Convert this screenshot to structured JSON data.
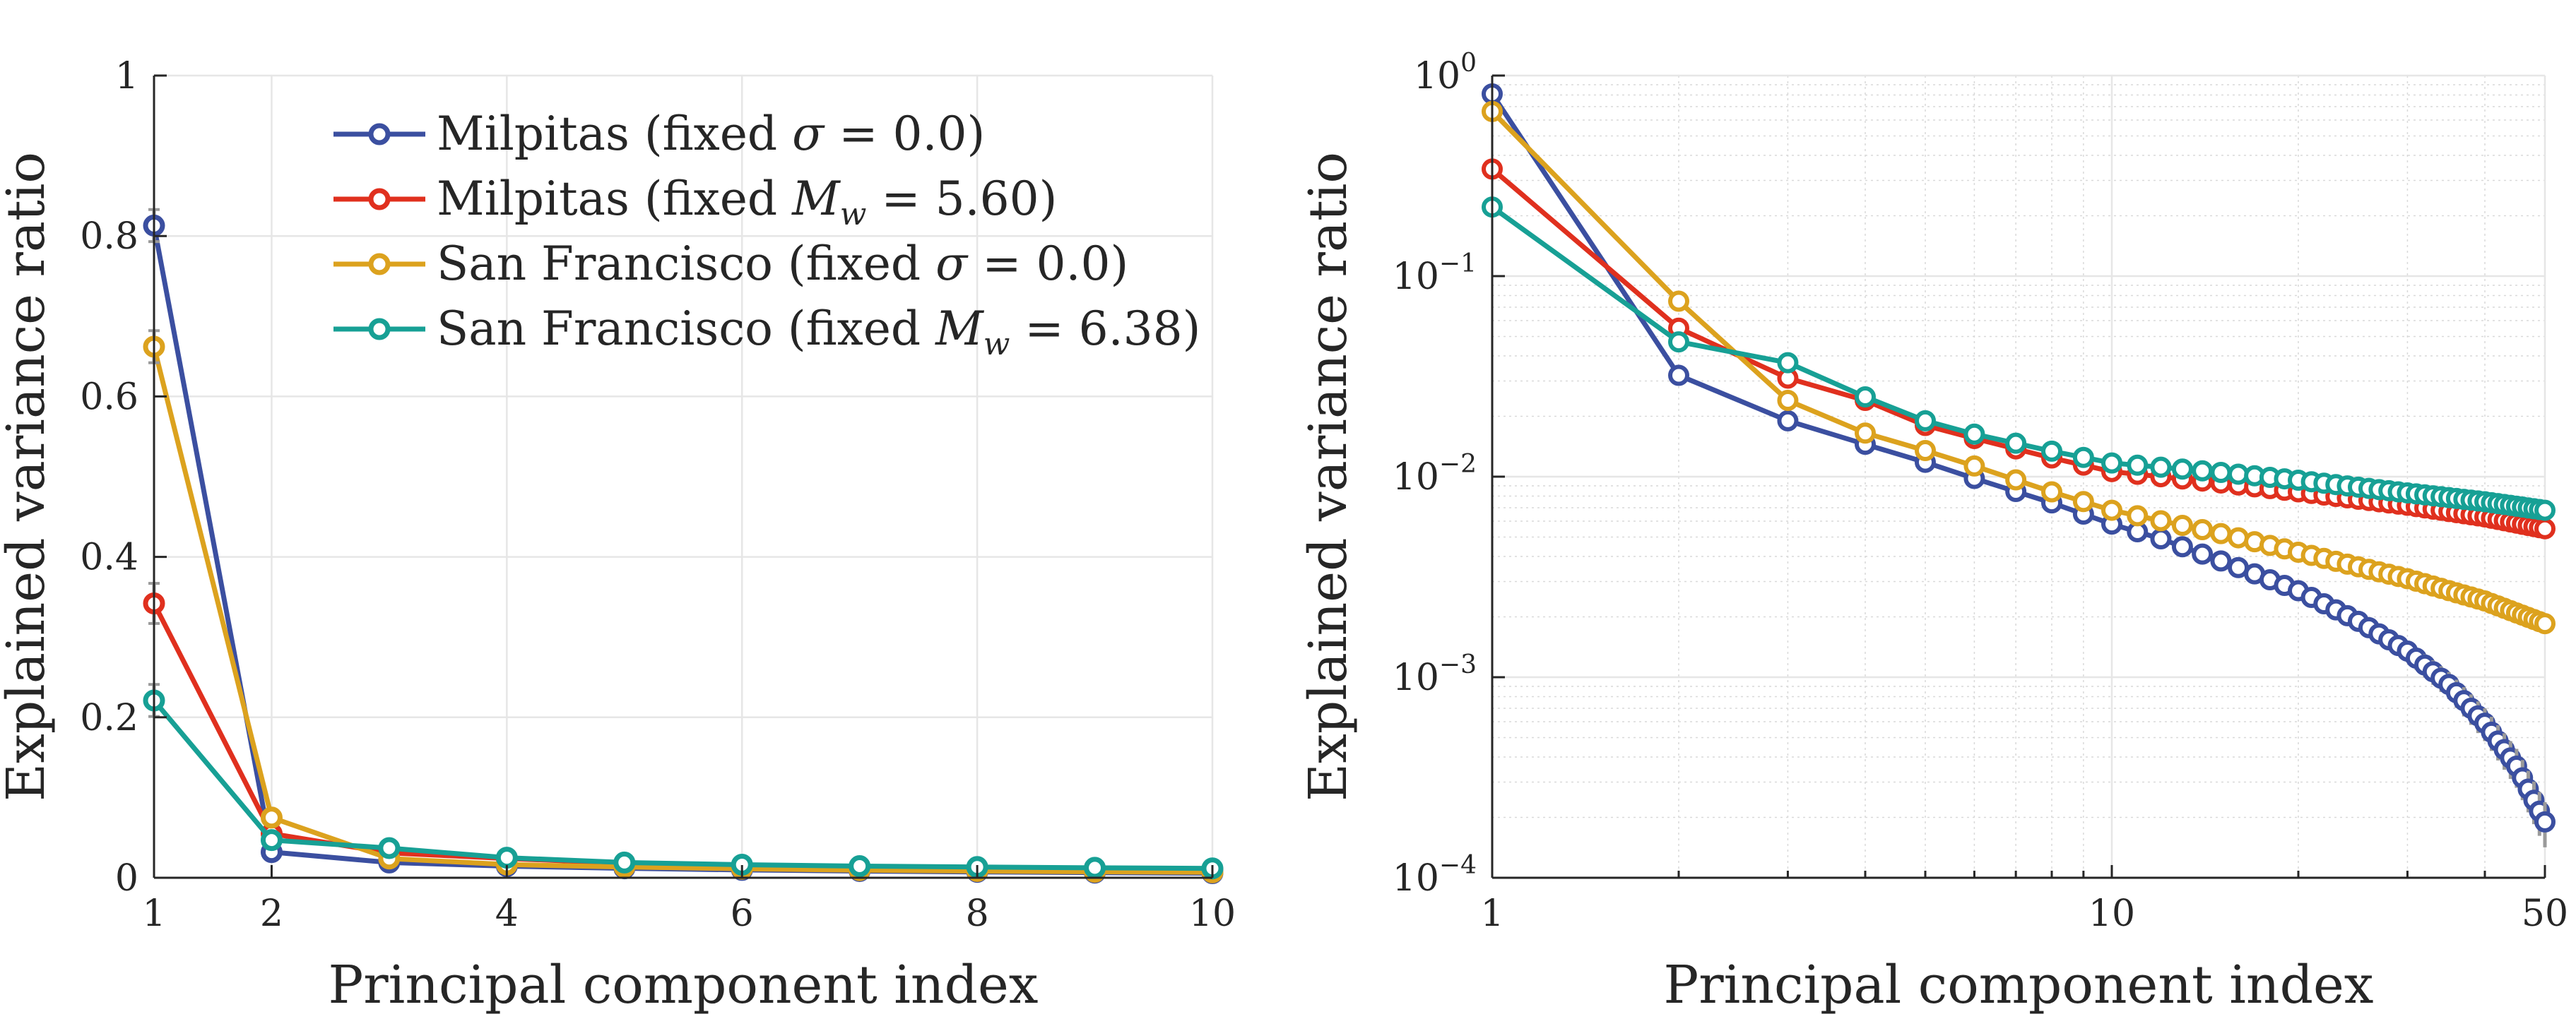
{
  "chart_data": [
    {
      "type": "line",
      "x_scale": "linear",
      "y_scale": "linear",
      "xlabel": "Principal component index",
      "ylabel": "Explained variance ratio",
      "xlim": [
        1,
        10
      ],
      "ylim": [
        0,
        1
      ],
      "x_ticks": [
        1,
        2,
        4,
        6,
        8,
        10
      ],
      "x_tick_labels": [
        "1",
        "2",
        "4",
        "6",
        "8",
        "10"
      ],
      "y_ticks": [
        0,
        0.2,
        0.4,
        0.6,
        0.8,
        1
      ],
      "y_tick_labels": [
        "0",
        "0.2",
        "0.4",
        "0.6",
        "0.8",
        "1"
      ],
      "grid": true,
      "legend_position": "top-right",
      "x": [
        1,
        2,
        3,
        4,
        5,
        6,
        7,
        8,
        9,
        10
      ],
      "series": [
        {
          "name": "Milpitas (fixed σ = 0.0)",
          "color": "#3b4fa0",
          "values": [
            0.813,
            0.032,
            0.019,
            0.0145,
            0.0118,
            0.0098,
            0.0084,
            0.0073,
            0.0064,
            0.0057
          ],
          "error": [
            0.02,
            0.004,
            0.002,
            0.0015,
            0.0012,
            0.001,
            0.0008,
            0.0007,
            0.0006,
            0.0005
          ]
        },
        {
          "name": "Milpitas (fixed M_w = 5.60)",
          "color": "#e0301e",
          "values": [
            0.342,
            0.055,
            0.031,
            0.024,
            0.018,
            0.0155,
            0.0137,
            0.0124,
            0.0113,
            0.0105
          ],
          "error": [
            0.025,
            0.005,
            0.003,
            0.002,
            0.0015,
            0.0012,
            0.001,
            0.0009,
            0.0008,
            0.0007
          ]
        },
        {
          "name": "San Francisco (fixed σ = 0.0)",
          "color": "#dca21e",
          "values": [
            0.662,
            0.075,
            0.024,
            0.0165,
            0.0135,
            0.0113,
            0.0095,
            0.0084,
            0.0075,
            0.0068
          ],
          "error": [
            0.02,
            0.005,
            0.002,
            0.0015,
            0.0012,
            0.001,
            0.0009,
            0.0008,
            0.0007,
            0.0006
          ]
        },
        {
          "name": "San Francisco (fixed M_w = 6.38)",
          "color": "#17a095",
          "values": [
            0.221,
            0.047,
            0.037,
            0.025,
            0.019,
            0.0163,
            0.0145,
            0.0134,
            0.0124,
            0.0117
          ],
          "error": [
            0.02,
            0.005,
            0.003,
            0.002,
            0.0015,
            0.0012,
            0.001,
            0.0009,
            0.0008,
            0.0007
          ]
        }
      ]
    },
    {
      "type": "line",
      "x_scale": "log",
      "y_scale": "log",
      "xlabel": "Principal component index",
      "ylabel": "Explained variance ratio",
      "xlim": [
        1,
        50
      ],
      "ylim": [
        0.0001,
        1
      ],
      "x_ticks": [
        1,
        10,
        50
      ],
      "x_tick_labels": [
        "1",
        "10",
        "50"
      ],
      "y_ticks": [
        0.0001,
        0.001,
        0.01,
        0.1,
        1
      ],
      "y_tick_labels": [
        {
          "base": "10",
          "exp": "−4"
        },
        {
          "base": "10",
          "exp": "−3"
        },
        {
          "base": "10",
          "exp": "−2"
        },
        {
          "base": "10",
          "exp": "−1"
        },
        {
          "base": "10",
          "exp": "0"
        }
      ],
      "grid": true,
      "series": [
        {
          "name": "Milpitas (fixed σ = 0.0)",
          "color": "#3b4fa0",
          "anchors": [
            [
              1,
              0.81
            ],
            [
              2,
              0.032
            ],
            [
              3,
              0.019
            ],
            [
              4,
              0.0145
            ],
            [
              5,
              0.0118
            ],
            [
              6,
              0.0098
            ],
            [
              8,
              0.0074
            ],
            [
              10,
              0.0058
            ],
            [
              12,
              0.0049
            ],
            [
              15,
              0.0038
            ],
            [
              20,
              0.0027
            ],
            [
              25,
              0.0019
            ],
            [
              30,
              0.00135
            ],
            [
              35,
              0.00092
            ],
            [
              40,
              0.00059
            ],
            [
              45,
              0.00036
            ],
            [
              50,
              0.00019
            ]
          ]
        },
        {
          "name": "Milpitas (fixed M_w = 5.60)",
          "color": "#e0301e",
          "anchors": [
            [
              1,
              0.342
            ],
            [
              2,
              0.055
            ],
            [
              3,
              0.031
            ],
            [
              4,
              0.024
            ],
            [
              5,
              0.018
            ],
            [
              6,
              0.0155
            ],
            [
              8,
              0.0124
            ],
            [
              10,
              0.0106
            ],
            [
              15,
              0.0093
            ],
            [
              20,
              0.0084
            ],
            [
              30,
              0.0072
            ],
            [
              40,
              0.0063
            ],
            [
              50,
              0.0055
            ]
          ]
        },
        {
          "name": "San Francisco (fixed σ = 0.0)",
          "color": "#dca21e",
          "anchors": [
            [
              1,
              0.662
            ],
            [
              2,
              0.075
            ],
            [
              3,
              0.024
            ],
            [
              4,
              0.0165
            ],
            [
              5,
              0.0135
            ],
            [
              6,
              0.0113
            ],
            [
              8,
              0.0084
            ],
            [
              10,
              0.0068
            ],
            [
              15,
              0.0052
            ],
            [
              20,
              0.0042
            ],
            [
              30,
              0.0031
            ],
            [
              40,
              0.0024
            ],
            [
              50,
              0.00185
            ]
          ]
        },
        {
          "name": "San Francisco (fixed M_w = 6.38)",
          "color": "#17a095",
          "anchors": [
            [
              1,
              0.221
            ],
            [
              2,
              0.047
            ],
            [
              3,
              0.037
            ],
            [
              4,
              0.025
            ],
            [
              5,
              0.019
            ],
            [
              6,
              0.0163
            ],
            [
              8,
              0.0134
            ],
            [
              10,
              0.0117
            ],
            [
              15,
              0.0105
            ],
            [
              20,
              0.0096
            ],
            [
              30,
              0.0083
            ],
            [
              40,
              0.0075
            ],
            [
              50,
              0.0068
            ]
          ]
        }
      ]
    }
  ],
  "legend": {
    "entries": [
      {
        "prefix": "Milpitas (fixed ",
        "var": "σ",
        "sub": "",
        "suffix": " = 0.0)"
      },
      {
        "prefix": "Milpitas (fixed ",
        "var": "M",
        "sub": "w",
        "suffix": " = 5.60)"
      },
      {
        "prefix": "San Francisco (fixed ",
        "var": "σ",
        "sub": "",
        "suffix": " = 0.0)"
      },
      {
        "prefix": "San Francisco (fixed ",
        "var": "M",
        "sub": "w",
        "suffix": " = 6.38)"
      }
    ]
  }
}
